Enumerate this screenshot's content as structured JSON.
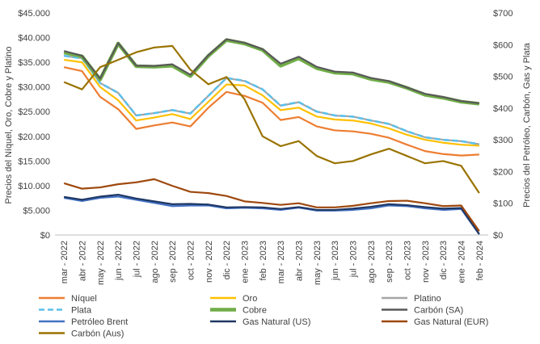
{
  "chart_data": {
    "type": "line",
    "y_label": "Precios del Níquel, Oro, Cobre y Platino",
    "y2_label": "Precios del Petróleo, Carbón, Gas y Plata",
    "categories": [
      "mar - 2022",
      "abr - 2022",
      "may - 2022",
      "jun - 2022",
      "jul - 2022",
      "ago - 2022",
      "sep - 2022",
      "oct - 2022",
      "nov - 2022",
      "dic - 2022",
      "ene - 2023",
      "feb - 2023",
      "mar - 2023",
      "abr - 2023",
      "may - 2023",
      "jun - 2023",
      "jul - 2023",
      "ago - 2023",
      "sep - 2023",
      "oct - 2023",
      "nov - 2023",
      "dic - 2023",
      "ene - 2024",
      "feb - 2024"
    ],
    "ylim": [
      0,
      45000
    ],
    "yticks": [
      {
        "value": 0,
        "label": "$0"
      },
      {
        "value": 5000,
        "label": "$5.000"
      },
      {
        "value": 10000,
        "label": "$10.000"
      },
      {
        "value": 15000,
        "label": "$15.000"
      },
      {
        "value": 20000,
        "label": "$20.000"
      },
      {
        "value": 25000,
        "label": "$25.000"
      },
      {
        "value": 30000,
        "label": "$30.000"
      },
      {
        "value": 35000,
        "label": "$35.000"
      },
      {
        "value": 40000,
        "label": "$40.000"
      },
      {
        "value": 45000,
        "label": "$45.000"
      }
    ],
    "y2lim": [
      0,
      700
    ],
    "y2ticks": [
      {
        "value": 0,
        "label": "$0"
      },
      {
        "value": 100,
        "label": "$100"
      },
      {
        "value": 200,
        "label": "$200"
      },
      {
        "value": 300,
        "label": "$300"
      },
      {
        "value": 400,
        "label": "$400"
      },
      {
        "value": 500,
        "label": "$500"
      },
      {
        "value": 600,
        "label": "$600"
      },
      {
        "value": 700,
        "label": "$700"
      }
    ],
    "grid": false,
    "series": [
      {
        "name": "Níquel",
        "color": "#ed7d31",
        "axis": "y",
        "values": [
          34000,
          33200,
          28000,
          25500,
          21500,
          22200,
          22800,
          22000,
          25800,
          29000,
          28200,
          26800,
          23300,
          23900,
          22000,
          21200,
          21000,
          20500,
          19700,
          18300,
          17000,
          16400,
          16100,
          16300
        ]
      },
      {
        "name": "Oro",
        "color": "#ffc000",
        "axis": "y",
        "values": [
          35500,
          35000,
          30000,
          27300,
          23200,
          23800,
          24500,
          23500,
          27000,
          30500,
          30300,
          28300,
          25300,
          25800,
          24000,
          23400,
          23200,
          22600,
          21600,
          20300,
          19300,
          18700,
          18300,
          18100
        ]
      },
      {
        "name": "Platino",
        "color": "#a5a5a5",
        "axis": "y",
        "values": [
          36300,
          35800,
          30800,
          28800,
          24200,
          24700,
          25300,
          24600,
          28200,
          31800,
          31200,
          29500,
          26200,
          26900,
          25000,
          24200,
          24000,
          23200,
          22500,
          21000,
          19800,
          19300,
          19000,
          18400
        ]
      },
      {
        "name": "Plata",
        "color": "#5bc0eb",
        "axis": "y2",
        "line_style": "dashed",
        "values": [
          565,
          557,
          479,
          448,
          377,
          384,
          394,
          383,
          439,
          495,
          486,
          459,
          408,
          419,
          389,
          377,
          373,
          361,
          350,
          327,
          308,
          300,
          296,
          286
        ]
      },
      {
        "name": "Cobre",
        "color": "#70ad47",
        "axis": "y",
        "line_style": "thick",
        "values": [
          37000,
          36200,
          31500,
          38800,
          34200,
          34100,
          34300,
          32200,
          36300,
          39500,
          38800,
          37500,
          34300,
          35800,
          33800,
          32900,
          32700,
          31600,
          31000,
          29800,
          28400,
          27800,
          27000,
          26600
        ]
      },
      {
        "name": "Carbón (SA)",
        "color": "#595959",
        "axis": "y2",
        "values": [
          580,
          565,
          493,
          605,
          534,
          533,
          538,
          505,
          567,
          617,
          606,
          586,
          540,
          562,
          530,
          515,
          512,
          495,
          485,
          465,
          445,
          435,
          422,
          415
        ]
      },
      {
        "name": "Petróleo Brent",
        "color": "#4472c4",
        "axis": "y2",
        "values": [
          117,
          107,
          117,
          121,
          111,
          101,
          91,
          93,
          93,
          84,
          86,
          84,
          79,
          86,
          77,
          77,
          79,
          84,
          93,
          91,
          84,
          79,
          82,
          2
        ]
      },
      {
        "name": "Gas Natural (US)",
        "color": "#1f3864",
        "axis": "y2",
        "values": [
          120,
          111,
          121,
          127,
          115,
          106,
          97,
          98,
          96,
          87,
          88,
          87,
          82,
          88,
          79,
          79,
          83,
          89,
          97,
          94,
          88,
          83,
          85,
          3
        ]
      },
      {
        "name": "Gas Natural (EUR)",
        "color": "#9e480e",
        "axis": "y2",
        "values": [
          163,
          146,
          150,
          160,
          166,
          176,
          155,
          136,
          132,
          123,
          106,
          101,
          95,
          100,
          87,
          87,
          92,
          100,
          107,
          108,
          100,
          91,
          93,
          12
        ]
      },
      {
        "name": "Carbón (Aus)",
        "color": "#997300",
        "axis": "y2",
        "values": [
          482,
          459,
          529,
          552,
          576,
          591,
          596,
          521,
          475,
          498,
          428,
          311,
          280,
          296,
          249,
          226,
          233,
          254,
          272,
          249,
          226,
          233,
          218,
          132
        ]
      }
    ]
  }
}
